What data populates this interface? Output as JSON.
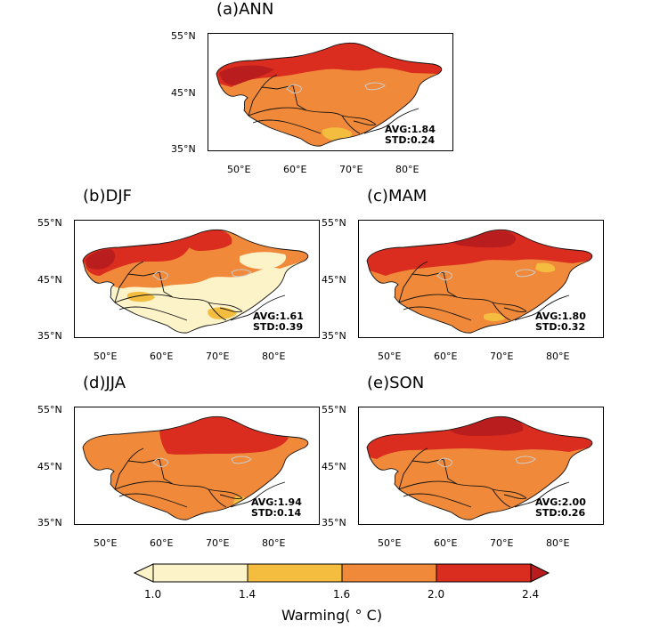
{
  "colors": {
    "c1": "#fdf3c9",
    "c2": "#f5bd3f",
    "c3": "#f08a3a",
    "c4": "#db2d1f",
    "c5": "#b91d1d",
    "border": "#111111",
    "lake": "#cccccc"
  },
  "panels": [
    {
      "id": "ann",
      "title": "(a)ANN",
      "avg": "AVG:1.84",
      "std": "STD:0.24",
      "lat_ticks": [
        "55°N",
        "45°N",
        "35°N"
      ],
      "lon_ticks": [
        "50°E",
        "60°E",
        "70°E",
        "80°E"
      ]
    },
    {
      "id": "djf",
      "title": "(b)DJF",
      "avg": "AVG:1.61",
      "std": "STD:0.39",
      "lat_ticks": [
        "55°N",
        "45°N",
        "35°N"
      ],
      "lon_ticks": [
        "50°E",
        "60°E",
        "70°E",
        "80°E"
      ]
    },
    {
      "id": "mam",
      "title": "(c)MAM",
      "avg": "AVG:1.80",
      "std": "STD:0.32",
      "lat_ticks": [
        "55°N",
        "45°N",
        "35°N"
      ],
      "lon_ticks": [
        "50°E",
        "60°E",
        "70°E",
        "80°E"
      ]
    },
    {
      "id": "jja",
      "title": "(d)JJA",
      "avg": "AVG:1.94",
      "std": "STD:0.14",
      "lat_ticks": [
        "55°N",
        "45°N",
        "35°N"
      ],
      "lon_ticks": [
        "50°E",
        "60°E",
        "70°E",
        "80°E"
      ]
    },
    {
      "id": "son",
      "title": "(e)SON",
      "avg": "AVG:2.00",
      "std": "STD:0.26",
      "lat_ticks": [
        "55°N",
        "45°N",
        "35°N"
      ],
      "lon_ticks": [
        "50°E",
        "60°E",
        "70°E",
        "80°E"
      ]
    }
  ],
  "colorbar": {
    "ticks": [
      "1.0",
      "1.4",
      "1.6",
      "2.0",
      "2.4"
    ],
    "title": "Warming( ° C)"
  }
}
